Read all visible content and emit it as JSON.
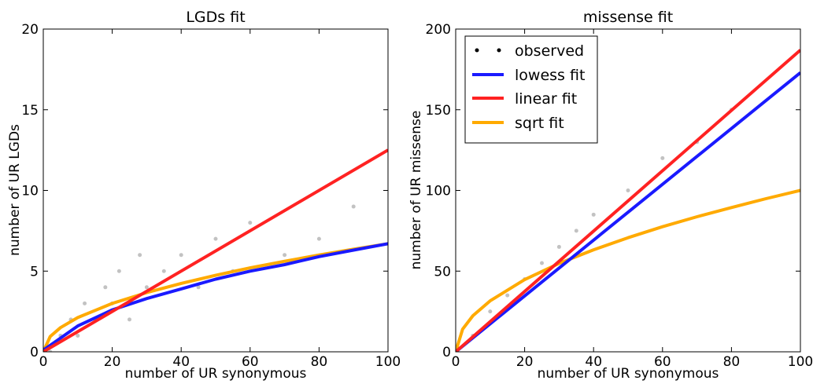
{
  "chart_data": [
    {
      "type": "scatter",
      "title": "LGDs fit",
      "xlabel": "number of UR synonymous",
      "ylabel": "number of UR LGDs",
      "xlim": [
        0,
        100
      ],
      "ylim": [
        0,
        20
      ],
      "xticks": [
        "0",
        "20",
        "40",
        "60",
        "80",
        "100"
      ],
      "yticks": [
        "0",
        "5",
        "10",
        "15",
        "20"
      ],
      "grid": false,
      "legend": null,
      "colors": {
        "points": "#505050",
        "lowess": "#1a1aff",
        "linear": "#ff2222",
        "sqrt": "#ffaa00"
      },
      "series": [
        {
          "kind": "points",
          "x": [
            2,
            5,
            8,
            10,
            12,
            15,
            18,
            20,
            22,
            25,
            28,
            30,
            35,
            40,
            45,
            50,
            55,
            60,
            70,
            80,
            90
          ],
          "y": [
            0,
            1,
            2,
            1,
            3,
            2,
            4,
            3,
            5,
            2,
            6,
            4,
            5,
            6,
            4,
            7,
            5,
            8,
            6,
            7,
            9
          ]
        },
        {
          "kind": "line",
          "name": "lowess",
          "x": [
            0,
            10,
            20,
            30,
            40,
            50,
            60,
            70,
            80,
            90,
            100
          ],
          "y": [
            0.1,
            1.6,
            2.6,
            3.3,
            3.9,
            4.5,
            5.0,
            5.4,
            5.9,
            6.3,
            6.7
          ]
        },
        {
          "kind": "line",
          "name": "linear",
          "x": [
            0,
            100
          ],
          "y": [
            0,
            12.5
          ]
        },
        {
          "kind": "line",
          "name": "sqrt",
          "x": [
            0,
            2,
            5,
            10,
            20,
            30,
            40,
            50,
            60,
            70,
            80,
            90,
            100
          ],
          "y": [
            0,
            0.95,
            1.5,
            2.12,
            3.0,
            3.67,
            4.24,
            4.74,
            5.2,
            5.61,
            6.0,
            6.36,
            6.7
          ]
        }
      ]
    },
    {
      "type": "scatter",
      "title": "missense fit",
      "xlabel": "number of UR synonymous",
      "ylabel": "number of UR missense",
      "xlim": [
        0,
        100
      ],
      "ylim": [
        0,
        200
      ],
      "xticks": [
        "0",
        "20",
        "40",
        "60",
        "80",
        "100"
      ],
      "yticks": [
        "0",
        "50",
        "100",
        "150",
        "200"
      ],
      "grid": false,
      "legend": "top-left",
      "legend_entries": [
        "observed",
        "lowess fit",
        "linear fit",
        "sqrt fit"
      ],
      "colors": {
        "points": "#505050",
        "lowess": "#1a1aff",
        "linear": "#ff2222",
        "sqrt": "#ffaa00"
      },
      "series": [
        {
          "kind": "points",
          "x": [
            5,
            10,
            15,
            20,
            25,
            30,
            35,
            40,
            50,
            60,
            70,
            80
          ],
          "y": [
            10,
            25,
            35,
            45,
            55,
            65,
            75,
            85,
            100,
            120,
            130,
            150
          ]
        },
        {
          "kind": "line",
          "name": "lowess",
          "x": [
            0,
            100
          ],
          "y": [
            0,
            173
          ]
        },
        {
          "kind": "line",
          "name": "linear",
          "x": [
            0,
            100
          ],
          "y": [
            0,
            187
          ]
        },
        {
          "kind": "line",
          "name": "sqrt",
          "x": [
            0,
            2,
            5,
            10,
            20,
            30,
            40,
            50,
            60,
            70,
            80,
            90,
            100
          ],
          "y": [
            0,
            14,
            22.4,
            31.6,
            44.7,
            54.8,
            63.2,
            70.7,
            77.5,
            83.7,
            89.4,
            94.9,
            100
          ]
        }
      ]
    }
  ]
}
